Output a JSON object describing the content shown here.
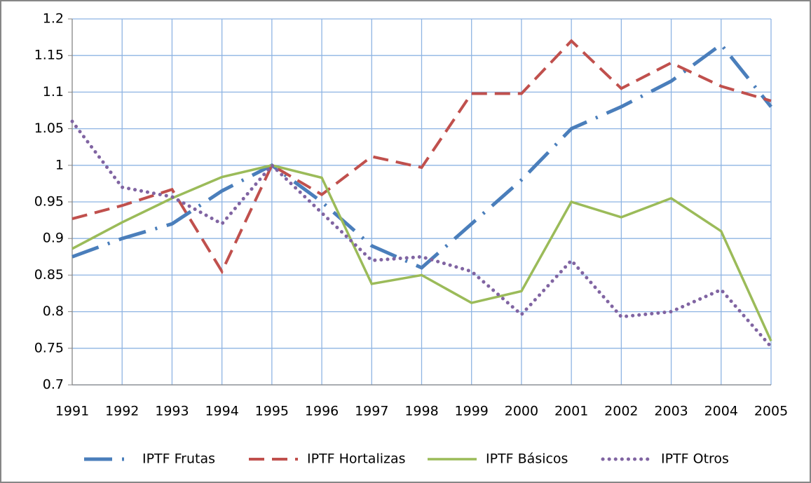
{
  "chart_data": {
    "type": "line",
    "categories": [
      "1991",
      "1992",
      "1993",
      "1994",
      "1995",
      "1996",
      "1997",
      "1998",
      "1999",
      "2000",
      "2001",
      "2002",
      "2003",
      "2004",
      "2005"
    ],
    "series": [
      {
        "name": "IPTF Frutas",
        "color": "#4a7ebb",
        "style": "dashdot",
        "values": [
          0.875,
          0.9,
          0.92,
          0.965,
          1.0,
          0.95,
          0.89,
          0.86,
          0.92,
          0.98,
          1.05,
          1.08,
          1.115,
          1.165,
          1.08
        ]
      },
      {
        "name": "IPTF Hortalizas",
        "color": "#c0504d",
        "style": "dash",
        "values": [
          0.927,
          0.945,
          0.967,
          0.855,
          1.0,
          0.96,
          1.012,
          0.997,
          1.098,
          1.098,
          1.17,
          1.105,
          1.14,
          1.108,
          1.088
        ]
      },
      {
        "name": "IPTF Básicos",
        "color": "#9bbb59",
        "style": "solid",
        "values": [
          0.886,
          0.922,
          0.955,
          0.984,
          1.0,
          0.983,
          0.838,
          0.85,
          0.812,
          0.828,
          0.95,
          0.929,
          0.955,
          0.91,
          0.76
        ]
      },
      {
        "name": "IPTF Otros",
        "color": "#8064a2",
        "style": "dot",
        "values": [
          1.06,
          0.97,
          0.957,
          0.92,
          1.0,
          0.935,
          0.87,
          0.875,
          0.855,
          0.796,
          0.87,
          0.793,
          0.8,
          0.83,
          0.752
        ]
      }
    ],
    "ylim": [
      0.7,
      1.2
    ],
    "yticks": [
      0.7,
      0.75,
      0.8,
      0.85,
      0.9,
      0.95,
      1,
      1.05,
      1.1,
      1.15,
      1.2
    ],
    "grid": true,
    "legend": "bottom"
  }
}
